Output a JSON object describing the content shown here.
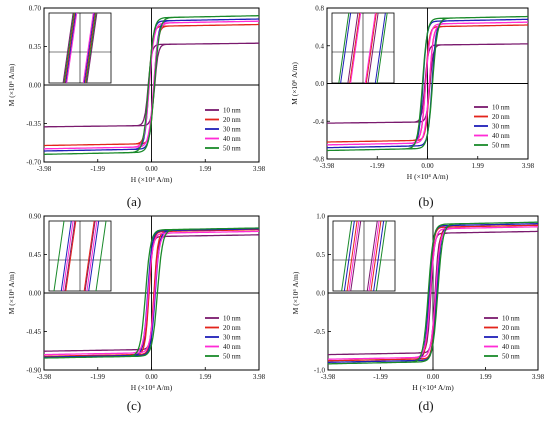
{
  "figure_title": "",
  "legend_entries": [
    "10 nm",
    "20 nm",
    "30 nm",
    "40 nm",
    "50 nm"
  ],
  "series_colors": [
    "#7a1a6e",
    "#e3241b",
    "#1f1fb8",
    "#ff2bd6",
    "#1a8a2a"
  ],
  "chart_data": [
    {
      "panel": "(a)",
      "type": "line",
      "title": "",
      "xlabel": "H (×10⁴ A/m)",
      "ylabel": "M (×10⁶ A/m)",
      "xlim": [
        -3.98,
        3.98
      ],
      "ylim": [
        -0.7,
        0.7
      ],
      "xticks": [
        -3.98,
        -1.99,
        0.0,
        1.99,
        3.98
      ],
      "yticks": [
        -0.7,
        -0.35,
        0.0,
        0.35,
        0.7
      ],
      "xtick_labels": [
        "-3.98",
        "-1.99",
        "0.00",
        "1.99",
        "3.98"
      ],
      "ytick_labels": [
        "-0.70",
        "-0.35",
        "0.00",
        "0.35",
        "0.70"
      ],
      "grid": false,
      "legend_position": "lower-right",
      "inset": "top-left, zoomed hysteresis loops near origin",
      "series": [
        {
          "name": "10 nm",
          "saturation_magnetization": 0.38,
          "coercivity": 0.12
        },
        {
          "name": "20 nm",
          "saturation_magnetization": 0.55,
          "coercivity": 0.1
        },
        {
          "name": "30 nm",
          "saturation_magnetization": 0.6,
          "coercivity": 0.09
        },
        {
          "name": "40 nm",
          "saturation_magnetization": 0.58,
          "coercivity": 0.08
        },
        {
          "name": "50 nm",
          "saturation_magnetization": 0.63,
          "coercivity": 0.11
        }
      ]
    },
    {
      "panel": "(b)",
      "type": "line",
      "title": "",
      "xlabel": "H (×10⁴ A/m)",
      "ylabel": "M (×10⁶ A/m)",
      "xlim": [
        -3.98,
        3.98
      ],
      "ylim": [
        -0.8,
        0.8
      ],
      "xticks": [
        -3.98,
        -1.99,
        0.0,
        1.99,
        3.98
      ],
      "yticks": [
        -0.8,
        -0.4,
        0.0,
        0.4,
        0.8
      ],
      "xtick_labels": [
        "-3.98",
        "-1.99",
        "0.00",
        "1.99",
        "3.98"
      ],
      "ytick_labels": [
        "-0.8",
        "-0.4",
        "0.0",
        "0.4",
        "0.8"
      ],
      "grid": false,
      "legend_position": "lower-right",
      "inset": "top-left, zoomed hysteresis loops near origin",
      "series": [
        {
          "name": "10 nm",
          "saturation_magnetization": 0.42,
          "coercivity": 0.1
        },
        {
          "name": "20 nm",
          "saturation_magnetization": 0.62,
          "coercivity": 0.08
        },
        {
          "name": "30 nm",
          "saturation_magnetization": 0.68,
          "coercivity": 0.18
        },
        {
          "name": "40 nm",
          "saturation_magnetization": 0.65,
          "coercivity": 0.07
        },
        {
          "name": "50 nm",
          "saturation_magnetization": 0.71,
          "coercivity": 0.2
        }
      ]
    },
    {
      "panel": "(c)",
      "type": "line",
      "title": "",
      "xlabel": "H (×10⁴ A/m)",
      "ylabel": "M (×10⁶ A/m)",
      "xlim": [
        -3.98,
        3.98
      ],
      "ylim": [
        -0.9,
        0.9
      ],
      "xticks": [
        -3.98,
        -1.99,
        0.0,
        1.99,
        3.98
      ],
      "yticks": [
        -0.9,
        -0.45,
        0.0,
        0.45,
        0.9
      ],
      "xtick_labels": [
        "-3.98",
        "-1.99",
        "0.00",
        "1.99",
        "3.98"
      ],
      "ytick_labels": [
        "-0.90",
        "-0.45",
        "0.00",
        "0.45",
        "0.90"
      ],
      "grid": false,
      "legend_position": "lower-right",
      "inset": "top-left, zoomed hysteresis loops near origin",
      "series": [
        {
          "name": "10 nm",
          "saturation_magnetization": 0.68,
          "coercivity": 0.1
        },
        {
          "name": "20 nm",
          "saturation_magnetization": 0.74,
          "coercivity": 0.09
        },
        {
          "name": "30 nm",
          "saturation_magnetization": 0.75,
          "coercivity": 0.14
        },
        {
          "name": "40 nm",
          "saturation_magnetization": 0.72,
          "coercivity": 0.12
        },
        {
          "name": "50 nm",
          "saturation_magnetization": 0.76,
          "coercivity": 0.22
        }
      ]
    },
    {
      "panel": "(d)",
      "type": "line",
      "title": "",
      "xlabel": "H (×10⁴ A/m)",
      "ylabel": "M (×10⁶ A/m)",
      "xlim": [
        -3.98,
        3.98
      ],
      "ylim": [
        -1.0,
        1.0
      ],
      "xticks": [
        -3.98,
        -1.99,
        0.0,
        1.99,
        3.98
      ],
      "yticks": [
        -1.0,
        -0.5,
        0.0,
        0.5,
        1.0
      ],
      "xtick_labels": [
        "-3.98",
        "-1.99",
        "0.00",
        "1.99",
        "3.98"
      ],
      "ytick_labels": [
        "-1.0",
        "-0.5",
        "0.0",
        "0.5",
        "1.0"
      ],
      "grid": false,
      "legend_position": "lower-right",
      "inset": "top-left, zoomed hysteresis loops near origin",
      "series": [
        {
          "name": "10 nm",
          "saturation_magnetization": 0.8,
          "coercivity": 0.08
        },
        {
          "name": "20 nm",
          "saturation_magnetization": 0.88,
          "coercivity": 0.12
        },
        {
          "name": "30 nm",
          "saturation_magnetization": 0.9,
          "coercivity": 0.15
        },
        {
          "name": "40 nm",
          "saturation_magnetization": 0.86,
          "coercivity": 0.1
        },
        {
          "name": "50 nm",
          "saturation_magnetization": 0.92,
          "coercivity": 0.18
        }
      ]
    }
  ]
}
